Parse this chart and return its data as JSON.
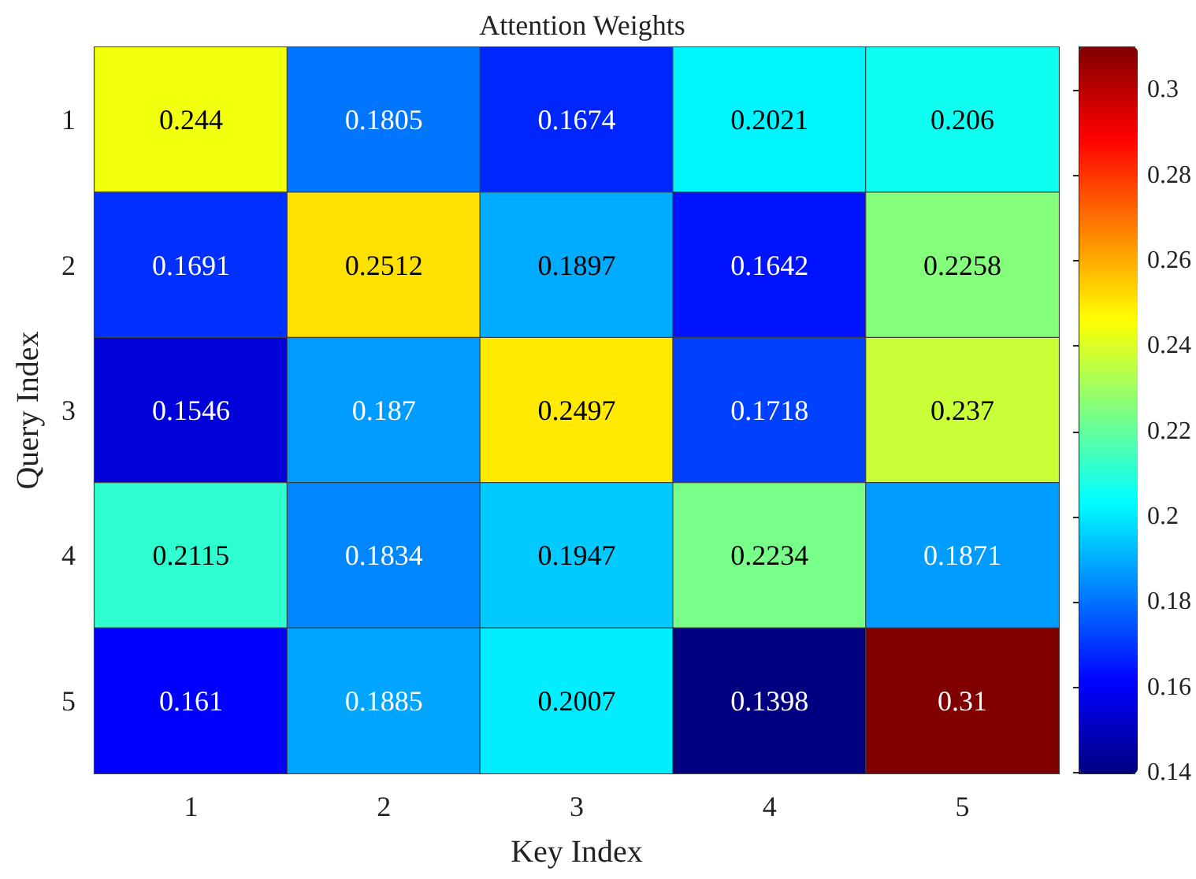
{
  "chart_data": {
    "type": "heatmap",
    "title": "Attention Weights",
    "xlabel": "Key Index",
    "ylabel": "Query Index",
    "categories": [
      "1",
      "2",
      "3",
      "4",
      "5"
    ],
    "y_categories": [
      "1",
      "2",
      "3",
      "4",
      "5"
    ],
    "cells": [
      [
        0.244,
        0.1805,
        0.1674,
        0.2021,
        0.206
      ],
      [
        0.1691,
        0.2512,
        0.1897,
        0.1642,
        0.2258
      ],
      [
        0.1546,
        0.187,
        0.2497,
        0.1718,
        0.237
      ],
      [
        0.2115,
        0.1834,
        0.1947,
        0.2234,
        0.1871
      ],
      [
        0.161,
        0.1885,
        0.2007,
        0.1398,
        0.31
      ]
    ],
    "data_labels": true,
    "clim": [
      0.1398,
      0.31
    ],
    "cticks": [
      0.14,
      0.16,
      0.18,
      0.2,
      0.22,
      0.24,
      0.26,
      0.28,
      0.3
    ]
  }
}
